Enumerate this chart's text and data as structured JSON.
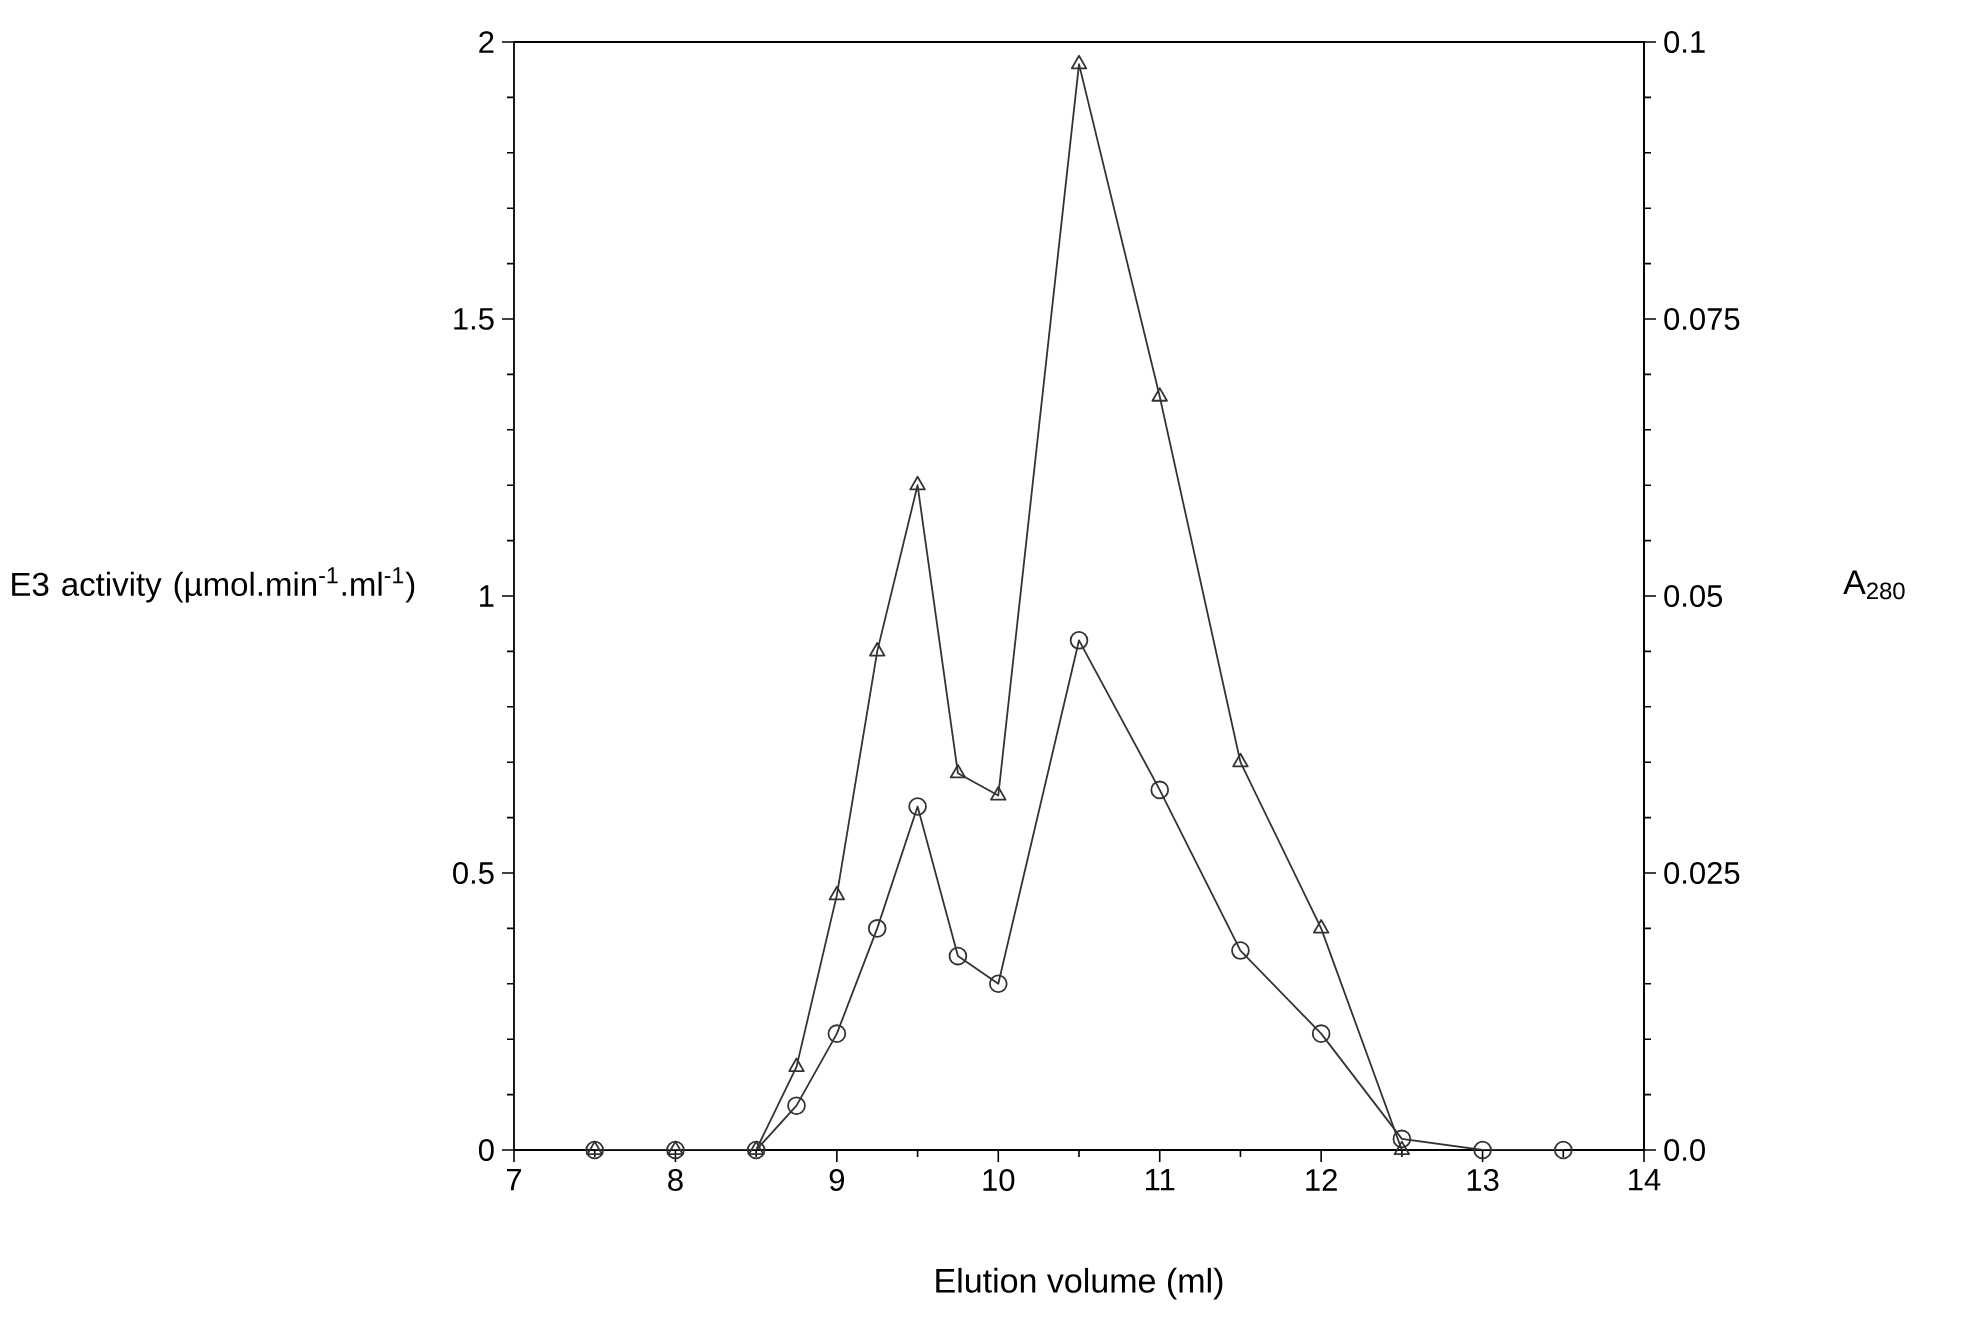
{
  "chart_data": {
    "type": "line",
    "xlabel": "Elution volume (ml)",
    "ylabel": "E3 activity (µmol.min$^{-1}$.ml$^{-1}$)",
    "y2label": "A$_{280}$",
    "x": [
      7.5,
      8,
      8.5,
      8.75,
      9,
      9.25,
      9.5,
      9.75,
      10,
      10.5,
      11,
      11.5,
      12,
      12.5,
      13,
      13.5
    ],
    "xlim": [
      7,
      14
    ],
    "xticks": [
      7,
      8,
      9,
      10,
      11,
      12,
      13,
      14
    ],
    "ylim": [
      0,
      2
    ],
    "yticks": [
      0,
      0.5,
      1,
      1.5,
      2
    ],
    "y2lim": [
      0,
      0.1
    ],
    "y2ticks": [
      {
        "value": 0,
        "label": "0.0"
      },
      0.025,
      0.05,
      0.075,
      0.1
    ],
    "series": [
      {
        "color": "#333333",
        "marker": "circle",
        "axis": "y2",
        "values": [
          0,
          0,
          0,
          0.004,
          0.0105,
          0.02,
          0.031,
          0.0175,
          0.015,
          0.046,
          0.0325,
          0.018,
          0.0105,
          0.001,
          0,
          0
        ]
      },
      {
        "color": "#333333",
        "marker": "triangle",
        "axis": "y",
        "values": [
          0,
          0,
          0,
          0.15,
          0.46,
          0.9,
          1.2,
          0.68,
          0.64,
          1.96,
          1.36,
          0.7,
          0.4,
          0,
          null,
          null
        ]
      }
    ]
  }
}
